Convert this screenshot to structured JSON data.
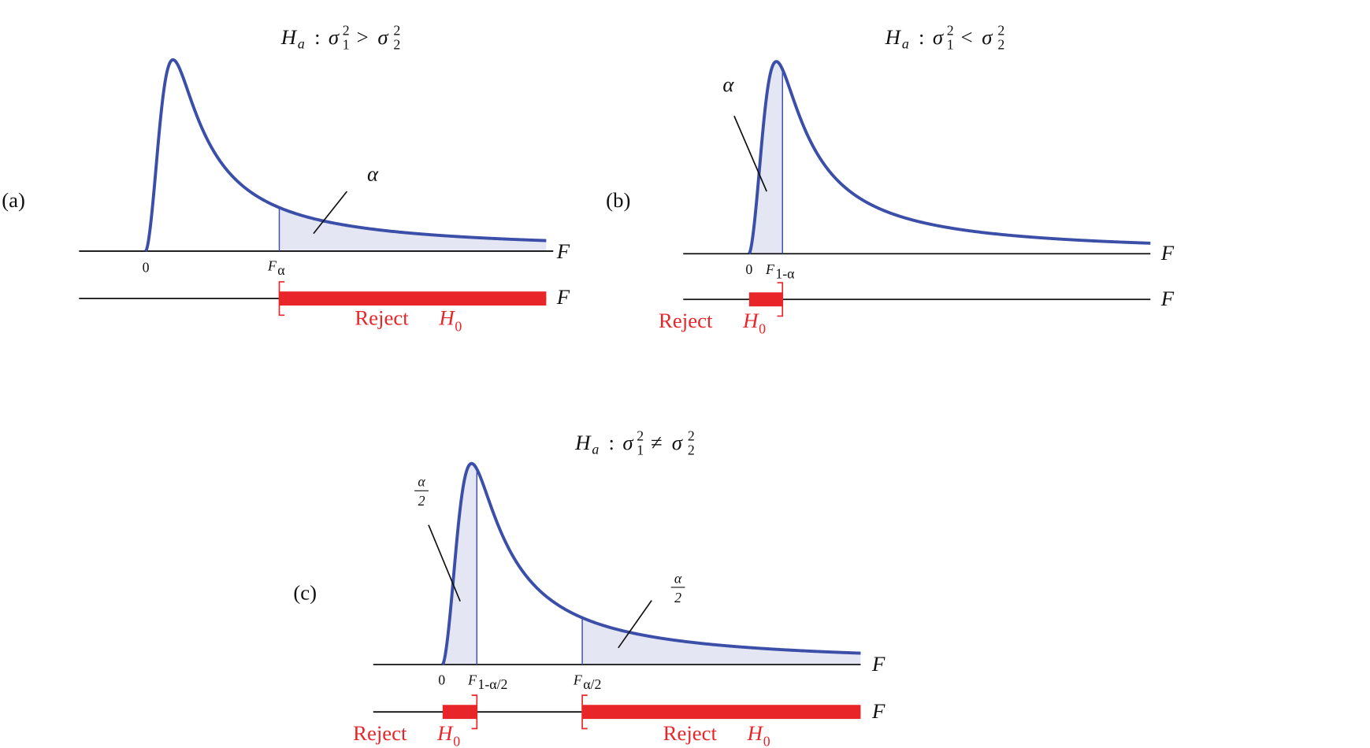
{
  "panels": [
    {
      "label": "(a)",
      "hypothesis": {
        "lhs": "H",
        "lhs_sub": "a",
        "sep": ":",
        "var1": "σ",
        "sup1": "2",
        "sub1": "1",
        "op": ">",
        "var2": "σ",
        "sup2": "2",
        "sub2": "2"
      },
      "alpha_labels": [
        {
          "numerator": "α"
        }
      ],
      "axis_label": "F",
      "zero": "0",
      "critical_values": [
        {
          "base": "F",
          "sub": "α"
        }
      ],
      "line_label": "F",
      "reject_labels": [
        {
          "word": "Reject",
          "H": "H",
          "sub": "0"
        }
      ]
    },
    {
      "label": "(b)",
      "hypothesis": {
        "lhs": "H",
        "lhs_sub": "a",
        "sep": ":",
        "var1": "σ",
        "sup1": "2",
        "sub1": "1",
        "op": "<",
        "var2": "σ",
        "sup2": "2",
        "sub2": "2"
      },
      "alpha_labels": [
        {
          "numerator": "α"
        }
      ],
      "axis_label": "F",
      "zero": "0",
      "critical_values": [
        {
          "base": "F",
          "sub": "1-α"
        }
      ],
      "line_label": "F",
      "reject_labels": [
        {
          "word": "Reject",
          "H": "H",
          "sub": "0"
        }
      ]
    },
    {
      "label": "(c)",
      "hypothesis": {
        "lhs": "H",
        "lhs_sub": "a",
        "sep": ":",
        "var1": "σ",
        "sup1": "2",
        "sub1": "1",
        "op": "≠",
        "var2": "σ",
        "sup2": "2",
        "sub2": "2"
      },
      "alpha_labels": [
        {
          "numerator": "α",
          "denominator": "2"
        },
        {
          "numerator": "α",
          "denominator": "2"
        }
      ],
      "axis_label": "F",
      "zero": "0",
      "critical_values": [
        {
          "base": "F",
          "sub": "1-α/2"
        },
        {
          "base": "F",
          "sub": "α/2"
        }
      ],
      "line_label": "F",
      "reject_labels": [
        {
          "word": "Reject",
          "H": "H",
          "sub": "0"
        },
        {
          "word": "Reject",
          "H": "H",
          "sub": "0"
        }
      ]
    }
  ]
}
